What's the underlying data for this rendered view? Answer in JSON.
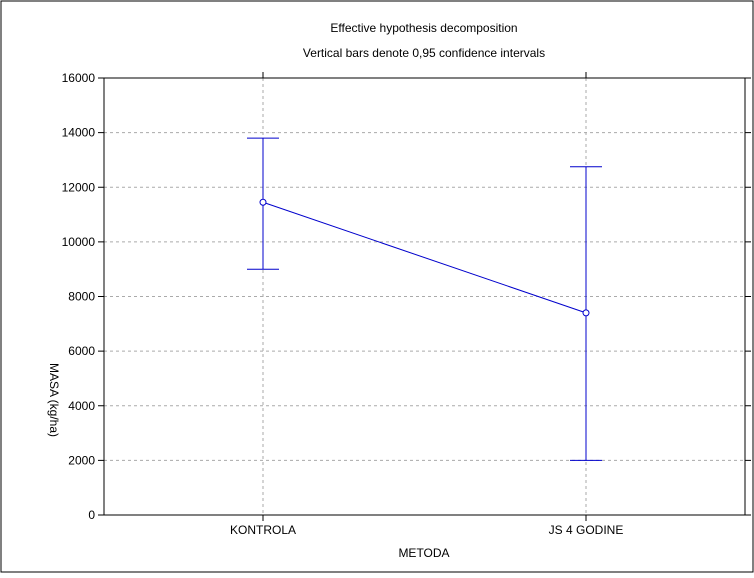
{
  "chart_data": {
    "type": "line",
    "title": "Effective hypothesis decomposition",
    "subtitle": "Vertical bars denote 0,95 confidence intervals",
    "xlabel": "METODA",
    "ylabel": "MASA (kg/ha)",
    "categories": [
      "KONTROLA",
      "JS 4 GODINE"
    ],
    "series": [
      {
        "values": [
          11450,
          7400
        ],
        "ci_lower": [
          9000,
          2000
        ],
        "ci_upper": [
          13800,
          12750
        ]
      }
    ],
    "ylim": [
      0,
      16000
    ],
    "yticks": [
      "0",
      "2000",
      "4000",
      "6000",
      "8000",
      "10000",
      "12000",
      "14000",
      "16000"
    ],
    "grid": true,
    "colors": {
      "series": "#0000cc",
      "grid": "#aaaaaa",
      "frame": "#000000"
    }
  }
}
